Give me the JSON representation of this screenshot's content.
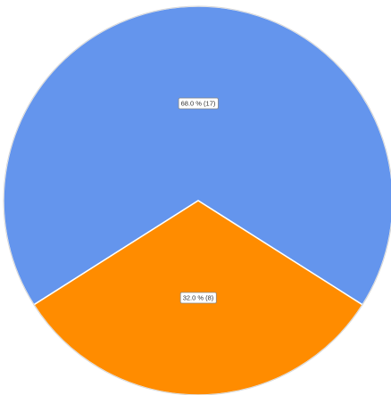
{
  "chart_data": {
    "type": "pie",
    "slices": [
      {
        "label": "68.0 % (17)",
        "value": 17,
        "percent": 68.0,
        "color": "#6495ED"
      },
      {
        "label": "32.0 % (8)",
        "value": 8,
        "percent": 32.0,
        "color": "#FF8C00"
      }
    ],
    "title": "",
    "legend": "none"
  }
}
